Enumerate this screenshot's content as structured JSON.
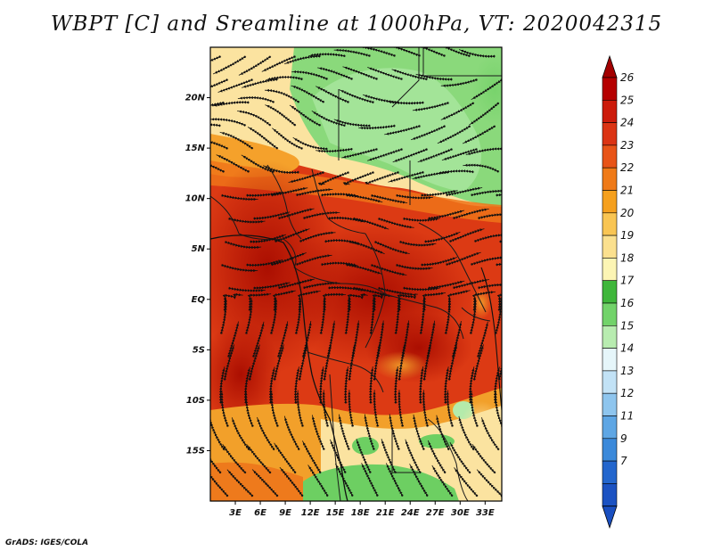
{
  "title": "WBPT [C] and Sreamline at 1000hPa, VT: 2020042315",
  "credit": "GrADS: IGES/COLA",
  "map": {
    "lon_range": [
      0,
      35
    ],
    "lat_range": [
      -20,
      25
    ],
    "x_ticks": [
      "3E",
      "6E",
      "9E",
      "12E",
      "15E",
      "18E",
      "21E",
      "24E",
      "27E",
      "30E",
      "33E"
    ],
    "x_tick_values": [
      3,
      6,
      9,
      12,
      15,
      18,
      21,
      24,
      27,
      30,
      33
    ],
    "y_ticks": [
      "20N",
      "15N",
      "10N",
      "5N",
      "EQ",
      "5S",
      "10S",
      "15S"
    ],
    "y_tick_values": [
      20,
      15,
      10,
      5,
      0,
      -5,
      -10,
      -15
    ]
  },
  "colorbar": {
    "labels": [
      "26",
      "25",
      "24",
      "23",
      "22",
      "21",
      "20",
      "19",
      "18",
      "17",
      "16",
      "15",
      "14",
      "13",
      "12",
      "11",
      "9",
      "7"
    ],
    "colors": [
      "#b50000",
      "#cc1b0b",
      "#db3414",
      "#e85418",
      "#ef7a18",
      "#f5a01e",
      "#f9c553",
      "#fbe08e",
      "#fcf5b4",
      "#3fb63b",
      "#72d36a",
      "#b8ecb0",
      "#e6f6fa",
      "#c2e2f6",
      "#8ec5ee",
      "#5ea6e4",
      "#3b89da",
      "#2366cd",
      "#1b52c2"
    ],
    "top_color": "#a30000",
    "bottom_color": "#1a4fc0"
  }
}
